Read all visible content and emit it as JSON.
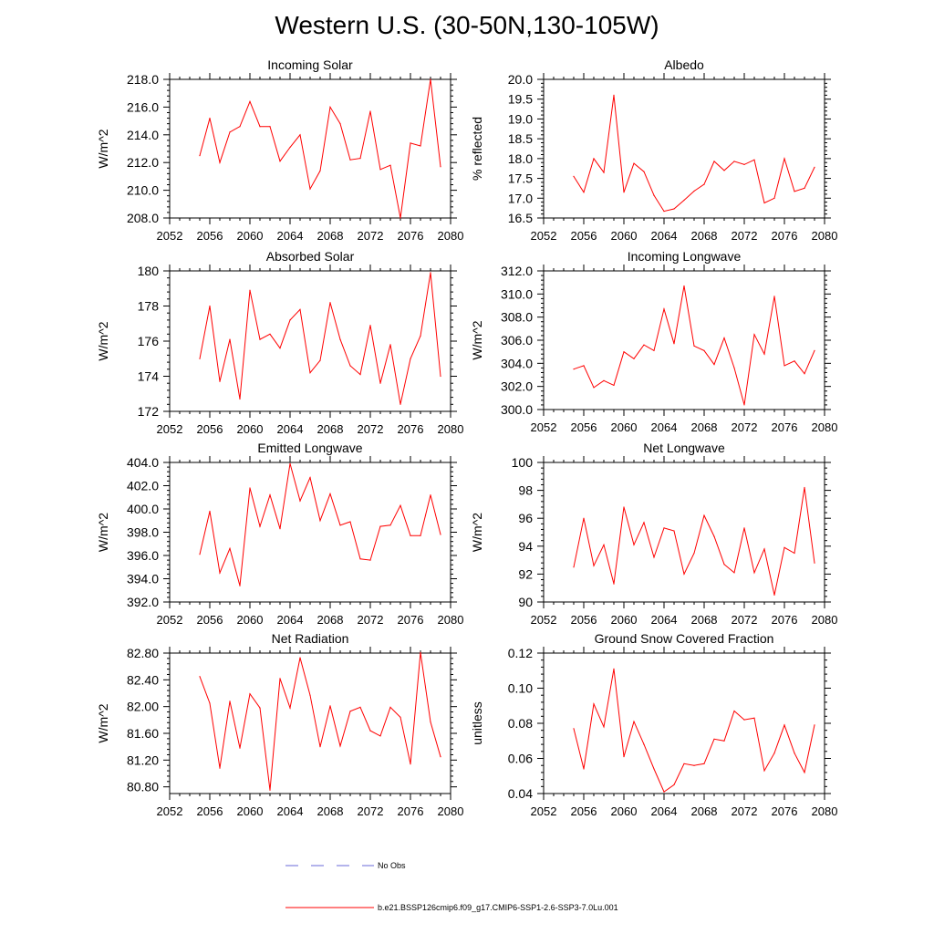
{
  "title": "Western U.S. (30-50N,130-105W)",
  "legend": {
    "obs_label": "No Obs",
    "model_label": "b.e21.BSSP126cmip6.f09_g17.CMIP6-SSP1-2.6-SSP3-7.0Lu.001",
    "obs_color": "#6a6ad8",
    "model_color": "#ff0000"
  },
  "chart_data": [
    {
      "type": "line",
      "title": "Incoming Solar",
      "ylabel": "W/m^2",
      "xlim": [
        2052,
        2080
      ],
      "ylim": [
        208,
        218
      ],
      "yticks": [
        208,
        210,
        212,
        214,
        216,
        218
      ],
      "ytick_labels": [
        "208.0",
        "210.0",
        "212.0",
        "214.0",
        "216.0",
        "218.0"
      ],
      "xticks": [
        2052,
        2056,
        2060,
        2064,
        2068,
        2072,
        2076,
        2080
      ],
      "xtick_labels": [
        "2052",
        "2056",
        "2060",
        "2064",
        "2068",
        "2072",
        "2076",
        "2080"
      ],
      "x": [
        2055,
        2056,
        2057,
        2058,
        2059,
        2060,
        2061,
        2062,
        2063,
        2064,
        2065,
        2066,
        2067,
        2068,
        2069,
        2070,
        2071,
        2072,
        2073,
        2074,
        2075,
        2076,
        2077,
        2078,
        2079
      ],
      "series": [
        {
          "values": [
            212.5,
            215.2,
            212.0,
            214.2,
            214.6,
            216.4,
            214.6,
            214.6,
            212.1,
            213.1,
            214.0,
            210.1,
            211.4,
            216.0,
            214.8,
            212.2,
            212.3,
            215.7,
            211.5,
            211.8,
            208.0,
            213.4,
            213.2,
            218.0,
            211.7
          ],
          "color": "#ff0000"
        }
      ]
    },
    {
      "type": "line",
      "title": "Albedo",
      "ylabel": "% reflected",
      "xlim": [
        2052,
        2080
      ],
      "ylim": [
        16.5,
        20.0
      ],
      "yticks": [
        16.5,
        17.0,
        17.5,
        18.0,
        18.5,
        19.0,
        19.5,
        20.0
      ],
      "ytick_labels": [
        "16.5",
        "17.0",
        "17.5",
        "18.0",
        "18.5",
        "19.0",
        "19.5",
        "20.0"
      ],
      "xticks": [
        2052,
        2056,
        2060,
        2064,
        2068,
        2072,
        2076,
        2080
      ],
      "xtick_labels": [
        "2052",
        "2056",
        "2060",
        "2064",
        "2068",
        "2072",
        "2076",
        "2080"
      ],
      "x": [
        2055,
        2056,
        2057,
        2058,
        2059,
        2060,
        2061,
        2062,
        2063,
        2064,
        2065,
        2066,
        2067,
        2068,
        2069,
        2070,
        2071,
        2072,
        2073,
        2074,
        2075,
        2076,
        2077,
        2078,
        2079
      ],
      "series": [
        {
          "values": [
            17.55,
            17.15,
            18.0,
            17.65,
            19.6,
            17.15,
            17.88,
            17.67,
            17.07,
            16.67,
            16.73,
            16.95,
            17.18,
            17.35,
            17.93,
            17.7,
            17.93,
            17.85,
            17.97,
            16.88,
            17.0,
            18.0,
            17.17,
            17.25,
            17.78
          ],
          "color": "#ff0000"
        }
      ]
    },
    {
      "type": "line",
      "title": "Absorbed Solar",
      "ylabel": "W/m^2",
      "xlim": [
        2052,
        2080
      ],
      "ylim": [
        172,
        180
      ],
      "yticks": [
        172,
        174,
        176,
        178,
        180
      ],
      "ytick_labels": [
        "172",
        "174",
        "176",
        "178",
        "180"
      ],
      "xticks": [
        2052,
        2056,
        2060,
        2064,
        2068,
        2072,
        2076,
        2080
      ],
      "xtick_labels": [
        "2052",
        "2056",
        "2060",
        "2064",
        "2068",
        "2072",
        "2076",
        "2080"
      ],
      "x": [
        2055,
        2056,
        2057,
        2058,
        2059,
        2060,
        2061,
        2062,
        2063,
        2064,
        2065,
        2066,
        2067,
        2068,
        2069,
        2070,
        2071,
        2072,
        2073,
        2074,
        2075,
        2076,
        2077,
        2078,
        2079
      ],
      "series": [
        {
          "values": [
            175.0,
            178.0,
            173.7,
            176.1,
            172.7,
            178.9,
            176.1,
            176.4,
            175.6,
            177.2,
            177.8,
            174.2,
            174.9,
            178.2,
            176.1,
            174.6,
            174.1,
            176.9,
            173.6,
            175.8,
            172.4,
            175.0,
            176.3,
            179.9,
            174.0
          ],
          "color": "#ff0000"
        }
      ]
    },
    {
      "type": "line",
      "title": "Incoming Longwave",
      "ylabel": "W/m^2",
      "xlim": [
        2052,
        2080
      ],
      "ylim": [
        300,
        312
      ],
      "yticks": [
        300,
        302,
        304,
        306,
        308,
        310,
        312
      ],
      "ytick_labels": [
        "300.0",
        "302.0",
        "304.0",
        "306.0",
        "308.0",
        "310.0",
        "312.0"
      ],
      "xticks": [
        2052,
        2056,
        2060,
        2064,
        2068,
        2072,
        2076,
        2080
      ],
      "xtick_labels": [
        "2052",
        "2056",
        "2060",
        "2064",
        "2068",
        "2072",
        "2076",
        "2080"
      ],
      "x": [
        2055,
        2056,
        2057,
        2058,
        2059,
        2060,
        2061,
        2062,
        2063,
        2064,
        2065,
        2066,
        2067,
        2068,
        2069,
        2070,
        2071,
        2072,
        2073,
        2074,
        2075,
        2076,
        2077,
        2078,
        2079
      ],
      "series": [
        {
          "values": [
            303.5,
            303.8,
            301.9,
            302.5,
            302.1,
            305.0,
            304.4,
            305.6,
            305.1,
            308.7,
            305.7,
            310.7,
            305.5,
            305.1,
            303.9,
            306.2,
            303.6,
            300.4,
            306.5,
            304.8,
            309.8,
            303.8,
            304.2,
            303.1,
            305.1
          ],
          "color": "#ff0000"
        }
      ]
    },
    {
      "type": "line",
      "title": "Emitted Longwave",
      "ylabel": "W/m^2",
      "xlim": [
        2052,
        2080
      ],
      "ylim": [
        392,
        404
      ],
      "yticks": [
        392,
        394,
        396,
        398,
        400,
        402,
        404
      ],
      "ytick_labels": [
        "392.0",
        "394.0",
        "396.0",
        "398.0",
        "400.0",
        "402.0",
        "404.0"
      ],
      "xticks": [
        2052,
        2056,
        2060,
        2064,
        2068,
        2072,
        2076,
        2080
      ],
      "xtick_labels": [
        "2052",
        "2056",
        "2060",
        "2064",
        "2068",
        "2072",
        "2076",
        "2080"
      ],
      "x": [
        2055,
        2056,
        2057,
        2058,
        2059,
        2060,
        2061,
        2062,
        2063,
        2064,
        2065,
        2066,
        2067,
        2068,
        2069,
        2070,
        2071,
        2072,
        2073,
        2074,
        2075,
        2076,
        2077,
        2078,
        2079
      ],
      "series": [
        {
          "values": [
            396.1,
            399.8,
            394.5,
            396.6,
            393.4,
            401.8,
            398.5,
            401.2,
            398.3,
            403.9,
            400.7,
            402.7,
            399.0,
            401.3,
            398.6,
            398.9,
            395.7,
            395.6,
            398.5,
            398.6,
            400.3,
            397.7,
            397.7,
            401.2,
            397.8
          ],
          "color": "#ff0000"
        }
      ]
    },
    {
      "type": "line",
      "title": "Net Longwave",
      "ylabel": "W/m^2",
      "xlim": [
        2052,
        2080
      ],
      "ylim": [
        90,
        100
      ],
      "yticks": [
        90,
        92,
        94,
        96,
        98,
        100
      ],
      "ytick_labels": [
        "90",
        "92",
        "94",
        "96",
        "98",
        "100"
      ],
      "xticks": [
        2052,
        2056,
        2060,
        2064,
        2068,
        2072,
        2076,
        2080
      ],
      "xtick_labels": [
        "2052",
        "2056",
        "2060",
        "2064",
        "2068",
        "2072",
        "2076",
        "2080"
      ],
      "x": [
        2055,
        2056,
        2057,
        2058,
        2059,
        2060,
        2061,
        2062,
        2063,
        2064,
        2065,
        2066,
        2067,
        2068,
        2069,
        2070,
        2071,
        2072,
        2073,
        2074,
        2075,
        2076,
        2077,
        2078,
        2079
      ],
      "series": [
        {
          "values": [
            92.5,
            96.0,
            92.6,
            94.1,
            91.3,
            96.8,
            94.1,
            95.7,
            93.2,
            95.3,
            95.1,
            92.0,
            93.5,
            96.2,
            94.7,
            92.7,
            92.1,
            95.3,
            92.1,
            93.8,
            90.5,
            93.9,
            93.5,
            98.2,
            92.8
          ],
          "color": "#ff0000"
        }
      ]
    },
    {
      "type": "line",
      "title": "Net Radiation",
      "ylabel": "W/m^2",
      "xlim": [
        2052,
        2080
      ],
      "ylim": [
        80.7,
        82.8
      ],
      "yticks": [
        80.8,
        81.2,
        81.6,
        82.0,
        82.4,
        82.8
      ],
      "ytick_labels": [
        "80.80",
        "81.20",
        "81.60",
        "82.00",
        "82.40",
        "82.80"
      ],
      "xticks": [
        2052,
        2056,
        2060,
        2064,
        2068,
        2072,
        2076,
        2080
      ],
      "xtick_labels": [
        "2052",
        "2056",
        "2060",
        "2064",
        "2068",
        "2072",
        "2076",
        "2080"
      ],
      "x": [
        2055,
        2056,
        2057,
        2058,
        2059,
        2060,
        2061,
        2062,
        2063,
        2064,
        2065,
        2066,
        2067,
        2068,
        2069,
        2070,
        2071,
        2072,
        2073,
        2074,
        2075,
        2076,
        2077,
        2078,
        2079
      ],
      "series": [
        {
          "values": [
            82.45,
            82.05,
            81.08,
            82.08,
            81.38,
            82.19,
            81.98,
            80.75,
            82.42,
            81.98,
            82.73,
            82.17,
            81.4,
            82.01,
            81.41,
            81.93,
            81.99,
            81.64,
            81.56,
            81.99,
            81.84,
            81.14,
            82.81,
            81.77,
            81.25
          ],
          "color": "#ff0000"
        }
      ]
    },
    {
      "type": "line",
      "title": "Ground Snow Covered Fraction",
      "ylabel": "unitless",
      "xlim": [
        2052,
        2080
      ],
      "ylim": [
        0.04,
        0.12
      ],
      "yticks": [
        0.04,
        0.06,
        0.08,
        0.1,
        0.12
      ],
      "ytick_labels": [
        "0.04",
        "0.06",
        "0.08",
        "0.10",
        "0.12"
      ],
      "xticks": [
        2052,
        2056,
        2060,
        2064,
        2068,
        2072,
        2076,
        2080
      ],
      "xtick_labels": [
        "2052",
        "2056",
        "2060",
        "2064",
        "2068",
        "2072",
        "2076",
        "2080"
      ],
      "x": [
        2055,
        2056,
        2057,
        2058,
        2059,
        2060,
        2061,
        2062,
        2063,
        2064,
        2065,
        2066,
        2067,
        2068,
        2069,
        2070,
        2071,
        2072,
        2073,
        2074,
        2075,
        2076,
        2077,
        2078,
        2079
      ],
      "series": [
        {
          "values": [
            0.077,
            0.054,
            0.091,
            0.078,
            0.111,
            0.061,
            0.081,
            0.068,
            0.054,
            0.041,
            0.045,
            0.057,
            0.056,
            0.057,
            0.071,
            0.07,
            0.087,
            0.082,
            0.083,
            0.053,
            0.063,
            0.079,
            0.063,
            0.052,
            0.079
          ],
          "color": "#ff0000"
        }
      ]
    }
  ]
}
